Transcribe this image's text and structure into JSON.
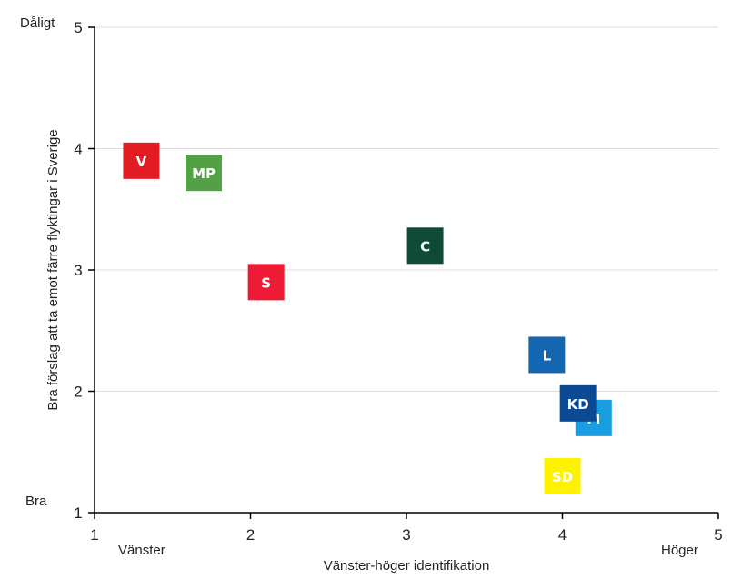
{
  "chart_data": {
    "type": "scatter",
    "xlabel": "Vänster-höger identifikation",
    "ylabel": "Bra förslag att ta emot färre flyktingar i Sverige",
    "xlim": [
      1,
      5
    ],
    "ylim": [
      1,
      5
    ],
    "x_ticks": [
      "1",
      "2",
      "3",
      "4",
      "5"
    ],
    "y_ticks": [
      "1",
      "2",
      "3",
      "4",
      "5"
    ],
    "grid": "horizontal",
    "x_end_labels": {
      "left": "Vänster",
      "right": "Höger"
    },
    "y_end_labels": {
      "bottom": "Bra",
      "top": "Dåligt"
    },
    "points": [
      {
        "label": "V",
        "x": 1.3,
        "y": 3.9,
        "color": "#e31b23",
        "text_color": "#ffffff"
      },
      {
        "label": "MP",
        "x": 1.7,
        "y": 3.8,
        "color": "#53a046",
        "text_color": "#ffffff"
      },
      {
        "label": "S",
        "x": 2.1,
        "y": 2.9,
        "color": "#ed1b34",
        "text_color": "#ffffff"
      },
      {
        "label": "C",
        "x": 3.12,
        "y": 3.2,
        "color": "#0f4a37",
        "text_color": "#ffffff"
      },
      {
        "label": "L",
        "x": 3.9,
        "y": 2.3,
        "color": "#1466b0",
        "text_color": "#ffffff"
      },
      {
        "label": "M",
        "x": 4.2,
        "y": 1.78,
        "color": "#1b9ee0",
        "text_color": "#ffffff"
      },
      {
        "label": "KD",
        "x": 4.1,
        "y": 1.9,
        "color": "#0b4a93",
        "text_color": "#ffffff"
      },
      {
        "label": "SD",
        "x": 4.0,
        "y": 1.3,
        "color": "#fff200",
        "text_color": "#ffffff"
      }
    ]
  }
}
